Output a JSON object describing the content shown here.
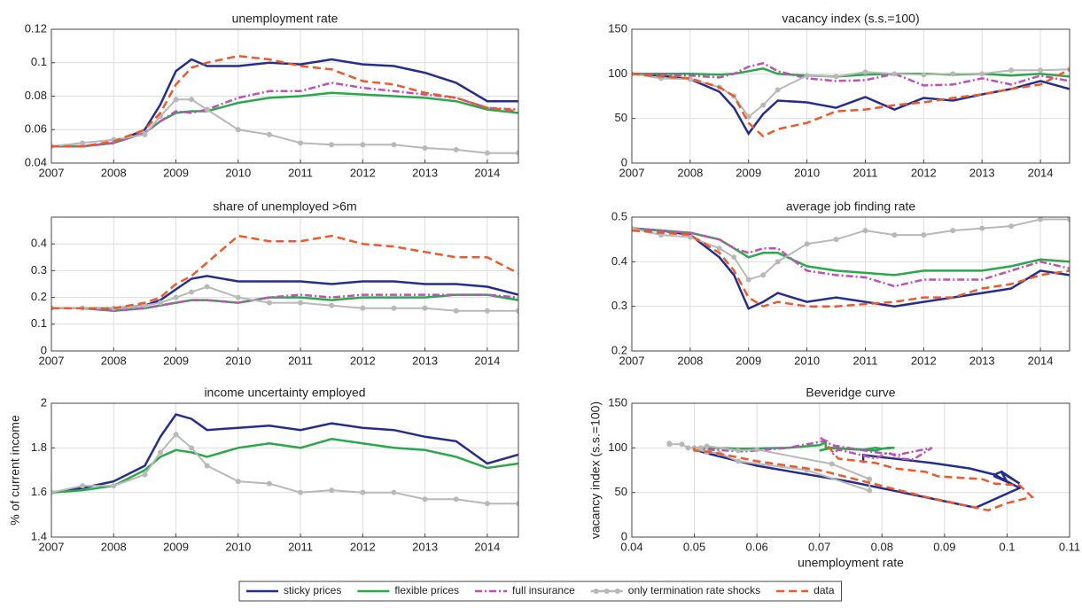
{
  "chart_data": [
    {
      "type": "line",
      "title": "unemployment rate",
      "x": [
        2007,
        2007.5,
        2008,
        2008.5,
        2008.75,
        2009,
        2009.25,
        2009.5,
        2010,
        2010.5,
        2011,
        2011.5,
        2012,
        2012.5,
        2013,
        2013.5,
        2014,
        2014.5
      ],
      "xlim": [
        2007,
        2014.5
      ],
      "xticks": [
        2007,
        2008,
        2009,
        2010,
        2011,
        2012,
        2013,
        2014
      ],
      "ylim": [
        0.04,
        0.12
      ],
      "yticks": [
        0.04,
        0.06,
        0.08,
        0.1,
        0.12
      ],
      "grid": true,
      "series": [
        {
          "name": "sticky prices",
          "color": "#262e8c",
          "style": "solid",
          "values": [
            0.05,
            0.05,
            0.052,
            0.06,
            0.075,
            0.095,
            0.102,
            0.098,
            0.098,
            0.1,
            0.099,
            0.102,
            0.099,
            0.098,
            0.094,
            0.088,
            0.077,
            0.077
          ]
        },
        {
          "name": "flexible prices",
          "color": "#2aa84a",
          "style": "solid",
          "values": [
            0.05,
            0.05,
            0.052,
            0.058,
            0.065,
            0.07,
            0.071,
            0.071,
            0.076,
            0.079,
            0.08,
            0.082,
            0.081,
            0.08,
            0.079,
            0.077,
            0.072,
            0.07
          ]
        },
        {
          "name": "full insurance",
          "color": "#c04fb8",
          "style": "dashdot",
          "values": [
            0.05,
            0.05,
            0.052,
            0.058,
            0.065,
            0.071,
            0.07,
            0.072,
            0.079,
            0.083,
            0.083,
            0.088,
            0.085,
            0.083,
            0.081,
            0.079,
            0.073,
            0.072
          ]
        },
        {
          "name": "only termination rate shocks",
          "color": "#b8b8b8",
          "style": "marker",
          "values": [
            0.05,
            0.052,
            0.054,
            0.057,
            0.068,
            0.078,
            0.078,
            0.072,
            0.06,
            0.057,
            0.052,
            0.051,
            0.051,
            0.051,
            0.049,
            0.048,
            0.046,
            0.046
          ]
        },
        {
          "name": "data",
          "color": "#ec5a2c",
          "style": "dash",
          "values": [
            0.05,
            0.05,
            0.053,
            0.06,
            0.07,
            0.087,
            0.097,
            0.1,
            0.104,
            0.102,
            0.098,
            0.096,
            0.089,
            0.087,
            0.082,
            0.079,
            0.073,
            0.071
          ]
        }
      ]
    },
    {
      "type": "line",
      "title": "vacancy index (s.s.=100)",
      "x": [
        2007,
        2007.5,
        2008,
        2008.5,
        2008.75,
        2009,
        2009.25,
        2009.5,
        2010,
        2010.5,
        2011,
        2011.5,
        2012,
        2012.5,
        2013,
        2013.5,
        2014,
        2014.5
      ],
      "xlim": [
        2007,
        2014.5
      ],
      "xticks": [
        2007,
        2008,
        2009,
        2010,
        2011,
        2012,
        2013,
        2014
      ],
      "ylim": [
        0,
        150
      ],
      "yticks": [
        0,
        50,
        100,
        150
      ],
      "grid": true,
      "series": [
        {
          "name": "sticky prices",
          "color": "#262e8c",
          "style": "solid",
          "values": [
            100,
            98,
            94,
            80,
            62,
            33,
            55,
            70,
            68,
            62,
            74,
            60,
            73,
            70,
            77,
            83,
            92,
            83
          ]
        },
        {
          "name": "flexible prices",
          "color": "#2aa84a",
          "style": "solid",
          "values": [
            100,
            100,
            100,
            99,
            100,
            103,
            106,
            100,
            98,
            97,
            99,
            100,
            100,
            99,
            100,
            98,
            100,
            97
          ]
        },
        {
          "name": "full insurance",
          "color": "#c04fb8",
          "style": "dashdot",
          "values": [
            100,
            99,
            98,
            96,
            100,
            108,
            112,
            103,
            95,
            92,
            93,
            100,
            87,
            88,
            95,
            88,
            98,
            92
          ]
        },
        {
          "name": "only termination rate shocks",
          "color": "#b8b8b8",
          "style": "marker",
          "values": [
            100,
            95,
            94,
            85,
            75,
            52,
            65,
            82,
            98,
            97,
            102,
            100,
            99,
            100,
            100,
            104,
            104,
            105
          ]
        },
        {
          "name": "data",
          "color": "#ec5a2c",
          "style": "dash",
          "values": [
            100,
            97,
            95,
            85,
            75,
            45,
            30,
            38,
            45,
            58,
            60,
            65,
            68,
            73,
            77,
            83,
            88,
            105
          ]
        }
      ]
    },
    {
      "type": "line",
      "title": "share of unemployed >6m",
      "x": [
        2007,
        2007.5,
        2008,
        2008.5,
        2008.75,
        2009,
        2009.25,
        2009.5,
        2010,
        2010.5,
        2011,
        2011.5,
        2012,
        2012.5,
        2013,
        2013.5,
        2014,
        2014.5
      ],
      "xlim": [
        2007,
        2014.5
      ],
      "xticks": [
        2007,
        2008,
        2009,
        2010,
        2011,
        2012,
        2013,
        2014
      ],
      "ylim": [
        0,
        0.5
      ],
      "yticks": [
        0,
        0.1,
        0.2,
        0.3,
        0.4
      ],
      "grid": true,
      "series": [
        {
          "name": "sticky prices",
          "color": "#262e8c",
          "style": "solid",
          "values": [
            0.16,
            0.16,
            0.16,
            0.17,
            0.19,
            0.23,
            0.27,
            0.28,
            0.26,
            0.26,
            0.26,
            0.25,
            0.26,
            0.26,
            0.25,
            0.25,
            0.24,
            0.21
          ]
        },
        {
          "name": "flexible prices",
          "color": "#2aa84a",
          "style": "solid",
          "values": [
            0.16,
            0.16,
            0.15,
            0.16,
            0.17,
            0.18,
            0.19,
            0.19,
            0.18,
            0.2,
            0.2,
            0.19,
            0.2,
            0.2,
            0.2,
            0.21,
            0.21,
            0.19
          ]
        },
        {
          "name": "full insurance",
          "color": "#c04fb8",
          "style": "dashdot",
          "values": [
            0.16,
            0.16,
            0.15,
            0.16,
            0.17,
            0.18,
            0.19,
            0.19,
            0.18,
            0.2,
            0.21,
            0.2,
            0.21,
            0.21,
            0.21,
            0.21,
            0.21,
            0.2
          ]
        },
        {
          "name": "only termination rate shocks",
          "color": "#b8b8b8",
          "style": "marker",
          "values": [
            0.16,
            0.16,
            0.16,
            0.17,
            0.18,
            0.2,
            0.22,
            0.24,
            0.2,
            0.18,
            0.18,
            0.17,
            0.16,
            0.16,
            0.16,
            0.15,
            0.15,
            0.15
          ]
        },
        {
          "name": "data",
          "color": "#ec5a2c",
          "style": "dash",
          "values": [
            0.16,
            0.16,
            0.16,
            0.18,
            0.2,
            0.25,
            0.28,
            0.33,
            0.43,
            0.41,
            0.41,
            0.43,
            0.4,
            0.39,
            0.37,
            0.35,
            0.35,
            0.29
          ]
        }
      ]
    },
    {
      "type": "line",
      "title": "average job finding rate",
      "x": [
        2007,
        2007.5,
        2008,
        2008.5,
        2008.75,
        2009,
        2009.25,
        2009.5,
        2010,
        2010.5,
        2011,
        2011.5,
        2012,
        2012.5,
        2013,
        2013.5,
        2014,
        2014.5
      ],
      "xlim": [
        2007,
        2014.5
      ],
      "xticks": [
        2007,
        2008,
        2009,
        2010,
        2011,
        2012,
        2013,
        2014
      ],
      "ylim": [
        0.2,
        0.5
      ],
      "yticks": [
        0.2,
        0.3,
        0.4,
        0.5
      ],
      "grid": true,
      "series": [
        {
          "name": "sticky prices",
          "color": "#262e8c",
          "style": "solid",
          "values": [
            0.475,
            0.47,
            0.46,
            0.41,
            0.37,
            0.295,
            0.31,
            0.33,
            0.31,
            0.32,
            0.31,
            0.3,
            0.31,
            0.32,
            0.33,
            0.34,
            0.38,
            0.37
          ]
        },
        {
          "name": "flexible prices",
          "color": "#2aa84a",
          "style": "solid",
          "values": [
            0.475,
            0.47,
            0.465,
            0.45,
            0.43,
            0.41,
            0.42,
            0.42,
            0.39,
            0.38,
            0.375,
            0.37,
            0.38,
            0.38,
            0.38,
            0.39,
            0.405,
            0.4
          ]
        },
        {
          "name": "full insurance",
          "color": "#c04fb8",
          "style": "dashdot",
          "values": [
            0.475,
            0.47,
            0.465,
            0.45,
            0.43,
            0.42,
            0.43,
            0.43,
            0.38,
            0.37,
            0.365,
            0.345,
            0.36,
            0.36,
            0.36,
            0.38,
            0.4,
            0.385
          ]
        },
        {
          "name": "only termination rate shocks",
          "color": "#b8b8b8",
          "style": "marker",
          "values": [
            0.475,
            0.46,
            0.455,
            0.43,
            0.41,
            0.36,
            0.37,
            0.4,
            0.44,
            0.45,
            0.47,
            0.46,
            0.46,
            0.47,
            0.475,
            0.48,
            0.495,
            0.495
          ]
        },
        {
          "name": "data",
          "color": "#ec5a2c",
          "style": "dash",
          "values": [
            0.47,
            0.465,
            0.46,
            0.42,
            0.38,
            0.32,
            0.3,
            0.31,
            0.3,
            0.3,
            0.305,
            0.31,
            0.32,
            0.32,
            0.34,
            0.35,
            0.37,
            0.38
          ]
        }
      ]
    },
    {
      "type": "line",
      "title": "income uncertainty employed",
      "ylabel": "% of current income",
      "x": [
        2007,
        2007.5,
        2008,
        2008.5,
        2008.75,
        2009,
        2009.25,
        2009.5,
        2010,
        2010.5,
        2011,
        2011.5,
        2012,
        2012.5,
        2013,
        2013.5,
        2014,
        2014.5
      ],
      "xlim": [
        2007,
        2014.5
      ],
      "xticks": [
        2007,
        2008,
        2009,
        2010,
        2011,
        2012,
        2013,
        2014
      ],
      "ylim": [
        1.4,
        2
      ],
      "yticks": [
        1.4,
        1.6,
        1.8,
        2
      ],
      "grid": true,
      "series": [
        {
          "name": "sticky prices",
          "color": "#262e8c",
          "style": "solid",
          "values": [
            1.6,
            1.62,
            1.65,
            1.72,
            1.85,
            1.95,
            1.93,
            1.88,
            1.89,
            1.9,
            1.88,
            1.91,
            1.89,
            1.88,
            1.85,
            1.83,
            1.73,
            1.77
          ]
        },
        {
          "name": "flexible prices",
          "color": "#2aa84a",
          "style": "solid",
          "values": [
            1.6,
            1.61,
            1.63,
            1.7,
            1.76,
            1.79,
            1.78,
            1.76,
            1.8,
            1.82,
            1.8,
            1.84,
            1.82,
            1.8,
            1.79,
            1.76,
            1.71,
            1.73
          ]
        },
        {
          "name": "only termination rate shocks",
          "color": "#b8b8b8",
          "style": "marker",
          "values": [
            1.6,
            1.63,
            1.63,
            1.68,
            1.78,
            1.86,
            1.8,
            1.72,
            1.65,
            1.64,
            1.6,
            1.61,
            1.6,
            1.6,
            1.57,
            1.57,
            1.55,
            1.55
          ]
        }
      ]
    },
    {
      "type": "line",
      "title": "Beveridge curve",
      "xlabel": "unemployment rate",
      "ylabel": "vacancy index (s.s.=100)",
      "xlim": [
        0.04,
        0.11
      ],
      "xticks": [
        0.04,
        0.05,
        0.06,
        0.07,
        0.08,
        0.09,
        0.1,
        0.11
      ],
      "ylim": [
        0,
        150
      ],
      "yticks": [
        0,
        50,
        100,
        150
      ],
      "grid": true,
      "series": [
        {
          "name": "sticky prices",
          "color": "#262e8c",
          "style": "solid",
          "x": [
            0.05,
            0.05,
            0.052,
            0.06,
            0.075,
            0.095,
            0.102,
            0.098,
            0.098,
            0.1,
            0.099,
            0.102,
            0.099,
            0.098,
            0.094,
            0.088,
            0.077,
            0.077
          ],
          "values": [
            100,
            98,
            94,
            80,
            62,
            33,
            55,
            70,
            68,
            62,
            74,
            60,
            73,
            70,
            77,
            83,
            92,
            83
          ]
        },
        {
          "name": "flexible prices",
          "color": "#2aa84a",
          "style": "solid",
          "x": [
            0.05,
            0.05,
            0.052,
            0.058,
            0.065,
            0.07,
            0.071,
            0.071,
            0.076,
            0.079,
            0.08,
            0.082,
            0.081,
            0.08,
            0.079,
            0.077,
            0.072,
            0.07
          ],
          "values": [
            100,
            100,
            100,
            99,
            100,
            103,
            106,
            100,
            98,
            97,
            99,
            100,
            100,
            99,
            100,
            98,
            100,
            97
          ]
        },
        {
          "name": "full insurance",
          "color": "#c04fb8",
          "style": "dashdot",
          "x": [
            0.05,
            0.05,
            0.052,
            0.058,
            0.065,
            0.071,
            0.07,
            0.072,
            0.079,
            0.083,
            0.083,
            0.088,
            0.085,
            0.083,
            0.081,
            0.079,
            0.073,
            0.072
          ],
          "values": [
            100,
            99,
            98,
            96,
            100,
            108,
            112,
            103,
            95,
            92,
            93,
            100,
            87,
            88,
            95,
            88,
            98,
            92
          ]
        },
        {
          "name": "only termination rate shocks",
          "color": "#b8b8b8",
          "style": "marker",
          "x": [
            0.05,
            0.052,
            0.054,
            0.057,
            0.068,
            0.078,
            0.078,
            0.072,
            0.06,
            0.057,
            0.052,
            0.051,
            0.051,
            0.051,
            0.049,
            0.048,
            0.046,
            0.046
          ],
          "values": [
            100,
            95,
            94,
            85,
            75,
            52,
            65,
            82,
            98,
            97,
            102,
            100,
            99,
            100,
            100,
            104,
            104,
            105
          ]
        },
        {
          "name": "data",
          "color": "#ec5a2c",
          "style": "dash",
          "x": [
            0.05,
            0.05,
            0.053,
            0.06,
            0.07,
            0.087,
            0.097,
            0.1,
            0.104,
            0.102,
            0.098,
            0.096,
            0.089,
            0.087,
            0.082,
            0.079,
            0.073,
            0.071
          ],
          "values": [
            100,
            97,
            95,
            85,
            75,
            45,
            30,
            38,
            45,
            58,
            60,
            65,
            68,
            73,
            77,
            83,
            88,
            105
          ]
        }
      ]
    }
  ]
}
